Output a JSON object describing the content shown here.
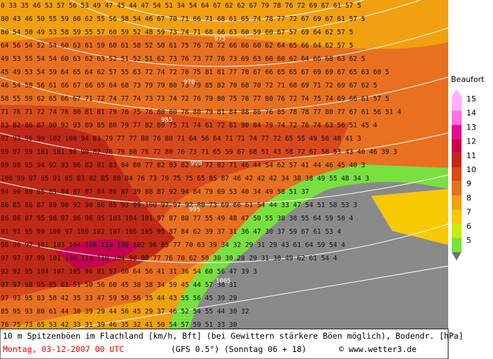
{
  "map": {
    "values": [
      "0 33 35 46 53 57 56 53 49 47 45 44 47 54 51 34 54 64 67 62 62 67 79 78 76 72 69 67 61 57 5",
      "80 43 46 50 55 59 60 62 55 56 58 54 46 67 70 71 66 71 68 61 65 74 78 77 72 67 69 67 61 57 5",
      "80 54 50 49 53 58 59 55 57 60 59 52 48 59 73 74 71 68 66 63 60 59 60 67 57 69 64 62 57 5",
      "64 56 54 52 54 60 63 61 59 60 61 58 52 50 61 75 76 78 72 66 66 60 62 64 65 66 64 62 57 5",
      "49 53 55 54 54 60 63 62 63 52 51 52 51 62 73 76 73 77 76 73 69 63 60 60 62 64 66 68 63 62 5",
      "45 49 53 54 59 64 65 64 62 57 55 63 72 74 72 70 75 81 81 77 70 67 66 65 65 67 69 69 67 65 63 60 5",
      "46 54 58 56 61 66 67 66 65 64 68 73 79 79 80 73 79 85 82 70 68 70 72 71 68 69 71 72 69 67 62 5",
      "58 55 59 62 65 66 67 71 72 74 77 74 73 73 74 72 76 79 80 75 78 77 80 76 72 74 75 74 69 66 61 57 5",
      "71 76 71 72 74 76 80 81 81 79 76 75 76 80 80 76 80 79 81 84 88 86 76 85 78 78 77 80 77 67 61 56 51 4",
      "83 82 86 87 90 92 93 89 85 80 79 77 82 80 75 71 74 61 72 81 90 84 79 74 72 76 74 63 56 51 45 4",
      "92 93 96 99 102 100 94 83 79 77 77 80 76 80 71 64 56 64 71 71 74 77 72 65 55 49 50 48 41 3",
      "99 97 99 101 101 98 90 82 76 79 80 76 72 80 76 73 71 65 59 67 68 51 43 58 72 67 58 53 43 40 46 39 3",
      "99 98 95 94 92 93 86 82 81 83 84 80 77 82 83 82 75 72 82 71 46 44 54 62 57 41 44 46 45 40 3",
      "100 99 97 95 91 85 83 82 85 88 84 76 73 79 75 75 65 85 87 46 42 42 42 34 30 38 49 55 48 34 3",
      "94 90 89 85 85 84 87 87 84 86 87 39 88 87 92 94 84 79 69 53 40 34 49 58 51 37",
      "86 85 86 87 89 90 92 90 86 85 93 99 100 97 97 92 80 73 69 66 61 54 44 33 47 54 51 58 53 3",
      "86 86 87 95 98 97 96 96 95 103 104 101 97 87 80 77 55 49 48 47 50 55 38 38 55 64 59 50 4",
      "91 91 95 99 100 97 100 102 107 106 105 95 87 84 62 39 37 31 36 47 30 37 59 67 61 53 4",
      "96 96 97 101 103 104 108 110 108 102 96 85 77 70 63 39 34 32 29 31 29 43 61 64 59 54 4",
      "97 97 97 99 101 108 110 110 104 98 90 77 76 70 62 50 30 30 28 29 31 30 49 62 61 54 4",
      "92 92 95 104 107 105 96 81 57 60 64 56 41 31 36 54 60 56 47 39 3",
      "97 97 98 95 85 61 51 50 56 60 45 38 38 34 59 45 44 57 38 31",
      "97 93 95 83 58 42 35 33 47 59 50 56 35 44 43 55 56 45 39 29",
      "85 95 93 80 61 44 30 39 29 44 56 45 29 37 46 52 54 55 44 30 32",
      "76 75 73 65 53 42 33 31 39 46 35 32 41 50 54 57 59 51 33 30"
    ],
    "isobars": [
      "970",
      "975",
      "985",
      "990",
      "995",
      "1005"
    ]
  },
  "legend": {
    "title": "Beaufort",
    "levels": [
      {
        "label": "15",
        "color": "#ffb0ff"
      },
      {
        "label": "14",
        "color": "#ff70e0"
      },
      {
        "label": "13",
        "color": "#e0108c"
      },
      {
        "label": "12",
        "color": "#c80050"
      },
      {
        "label": "11",
        "color": "#c02818"
      },
      {
        "label": "10",
        "color": "#d84a1c"
      },
      {
        "label": "9",
        "color": "#e87020"
      },
      {
        "label": "8",
        "color": "#f0a010"
      },
      {
        "label": "7",
        "color": "#f8c800"
      },
      {
        "label": "6",
        "color": "#c8ec10"
      },
      {
        "label": "5",
        "color": "#78e040"
      }
    ]
  },
  "footer": {
    "line1": "10 m Spitzenböen im Flachland [km/h, Bft] (bei Gewittern stärkere Böen möglich), Bodendr. [hPa]",
    "date": "Montag, 03-12-2007  00 UTC",
    "model": "(GFS 0.5°)",
    "run": "(Sonntag 06 + 18)",
    "credit": "© www.wetter3.de"
  }
}
